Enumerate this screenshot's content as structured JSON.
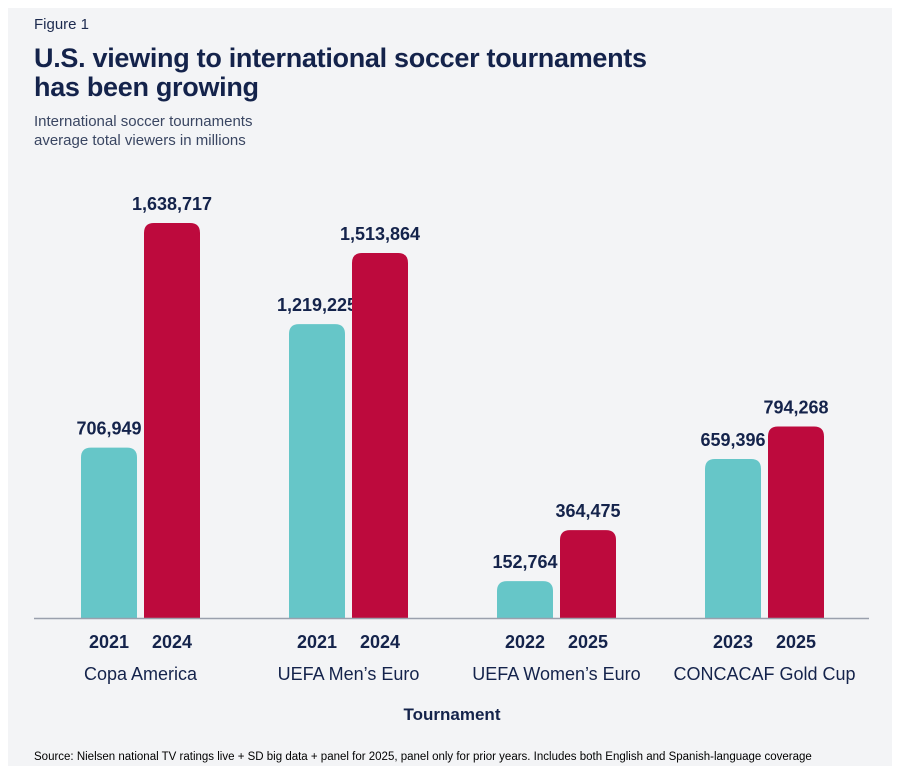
{
  "figure_label": "Figure 1",
  "title_line1": "U.S. viewing to international soccer tournaments",
  "title_line2": "has been growing",
  "subtitle_line1": "International soccer tournaments",
  "subtitle_line2": "average total viewers in millions",
  "source": "Source: Nielsen national TV ratings live + SD big data + panel for 2025, panel only for prior years. Includes both English and Spanish-language coverage",
  "colors": {
    "earlier": "#66c6c8",
    "later": "#bd0a3d",
    "axis": "#9aa0ad",
    "text": "#14234b",
    "background": "#f3f4f6"
  },
  "chart_data": {
    "type": "bar",
    "xlabel": "Tournament",
    "ylabel": "",
    "ylim": [
      0,
      1680000
    ],
    "grid": false,
    "groups": [
      {
        "name": "Copa America",
        "bars": [
          {
            "year": "2021",
            "value": 706949,
            "label": "706,949"
          },
          {
            "year": "2024",
            "value": 1638717,
            "label": "1,638,717"
          }
        ]
      },
      {
        "name": "UEFA Men’s Euro",
        "bars": [
          {
            "year": "2021",
            "value": 1219225,
            "label": "1,219,225"
          },
          {
            "year": "2024",
            "value": 1513864,
            "label": "1,513,864"
          }
        ]
      },
      {
        "name": "UEFA Women’s Euro",
        "bars": [
          {
            "year": "2022",
            "value": 152764,
            "label": "152,764"
          },
          {
            "year": "2025",
            "value": 364475,
            "label": "364,475"
          }
        ]
      },
      {
        "name": "CONCACAF Gold Cup",
        "bars": [
          {
            "year": "2023",
            "value": 659396,
            "label": "659,396"
          },
          {
            "year": "2025",
            "value": 794268,
            "label": "794,268"
          }
        ]
      }
    ]
  }
}
